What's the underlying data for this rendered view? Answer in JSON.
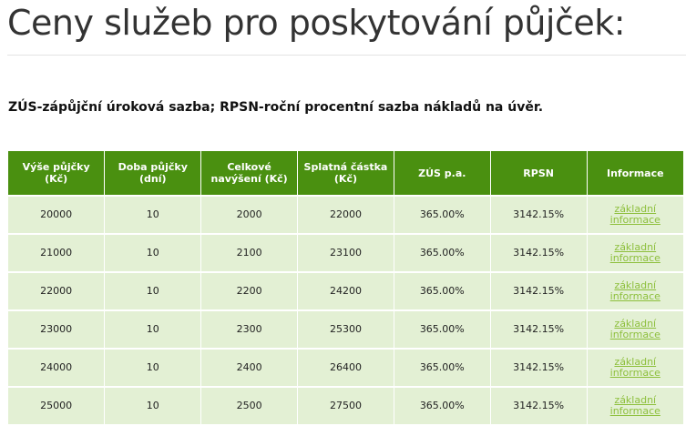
{
  "header": {
    "title": "Ceny služeb pro poskytování půjček:"
  },
  "legend": "ZÚS-zápůjční úroková sazba; RPSN-roční procentní sazba nákladů na úvěr.",
  "table": {
    "columns": [
      "Výše půjčky (Kč)",
      "Doba půjčky (dní)",
      "Celkové navýšení (Kč)",
      "Splatná částka (Kč)",
      "ZÚS p.a.",
      "RPSN",
      "Informace"
    ],
    "rows": [
      {
        "amount": "20000",
        "days": "10",
        "increase": "2000",
        "total": "22000",
        "zus": "365.00%",
        "rpsn": "3142.15%",
        "info": "základní informace"
      },
      {
        "amount": "21000",
        "days": "10",
        "increase": "2100",
        "total": "23100",
        "zus": "365.00%",
        "rpsn": "3142.15%",
        "info": "základní informace"
      },
      {
        "amount": "22000",
        "days": "10",
        "increase": "2200",
        "total": "24200",
        "zus": "365.00%",
        "rpsn": "3142.15%",
        "info": "základní informace"
      },
      {
        "amount": "23000",
        "days": "10",
        "increase": "2300",
        "total": "25300",
        "zus": "365.00%",
        "rpsn": "3142.15%",
        "info": "základní informace"
      },
      {
        "amount": "24000",
        "days": "10",
        "increase": "2400",
        "total": "26400",
        "zus": "365.00%",
        "rpsn": "3142.15%",
        "info": "základní informace"
      },
      {
        "amount": "25000",
        "days": "10",
        "increase": "2500",
        "total": "27500",
        "zus": "365.00%",
        "rpsn": "3142.15%",
        "info": "základní informace"
      }
    ]
  },
  "colors": {
    "header_bg": "#4a9010",
    "row_bg": "#e3f0d4",
    "link": "#8dbf3c"
  }
}
